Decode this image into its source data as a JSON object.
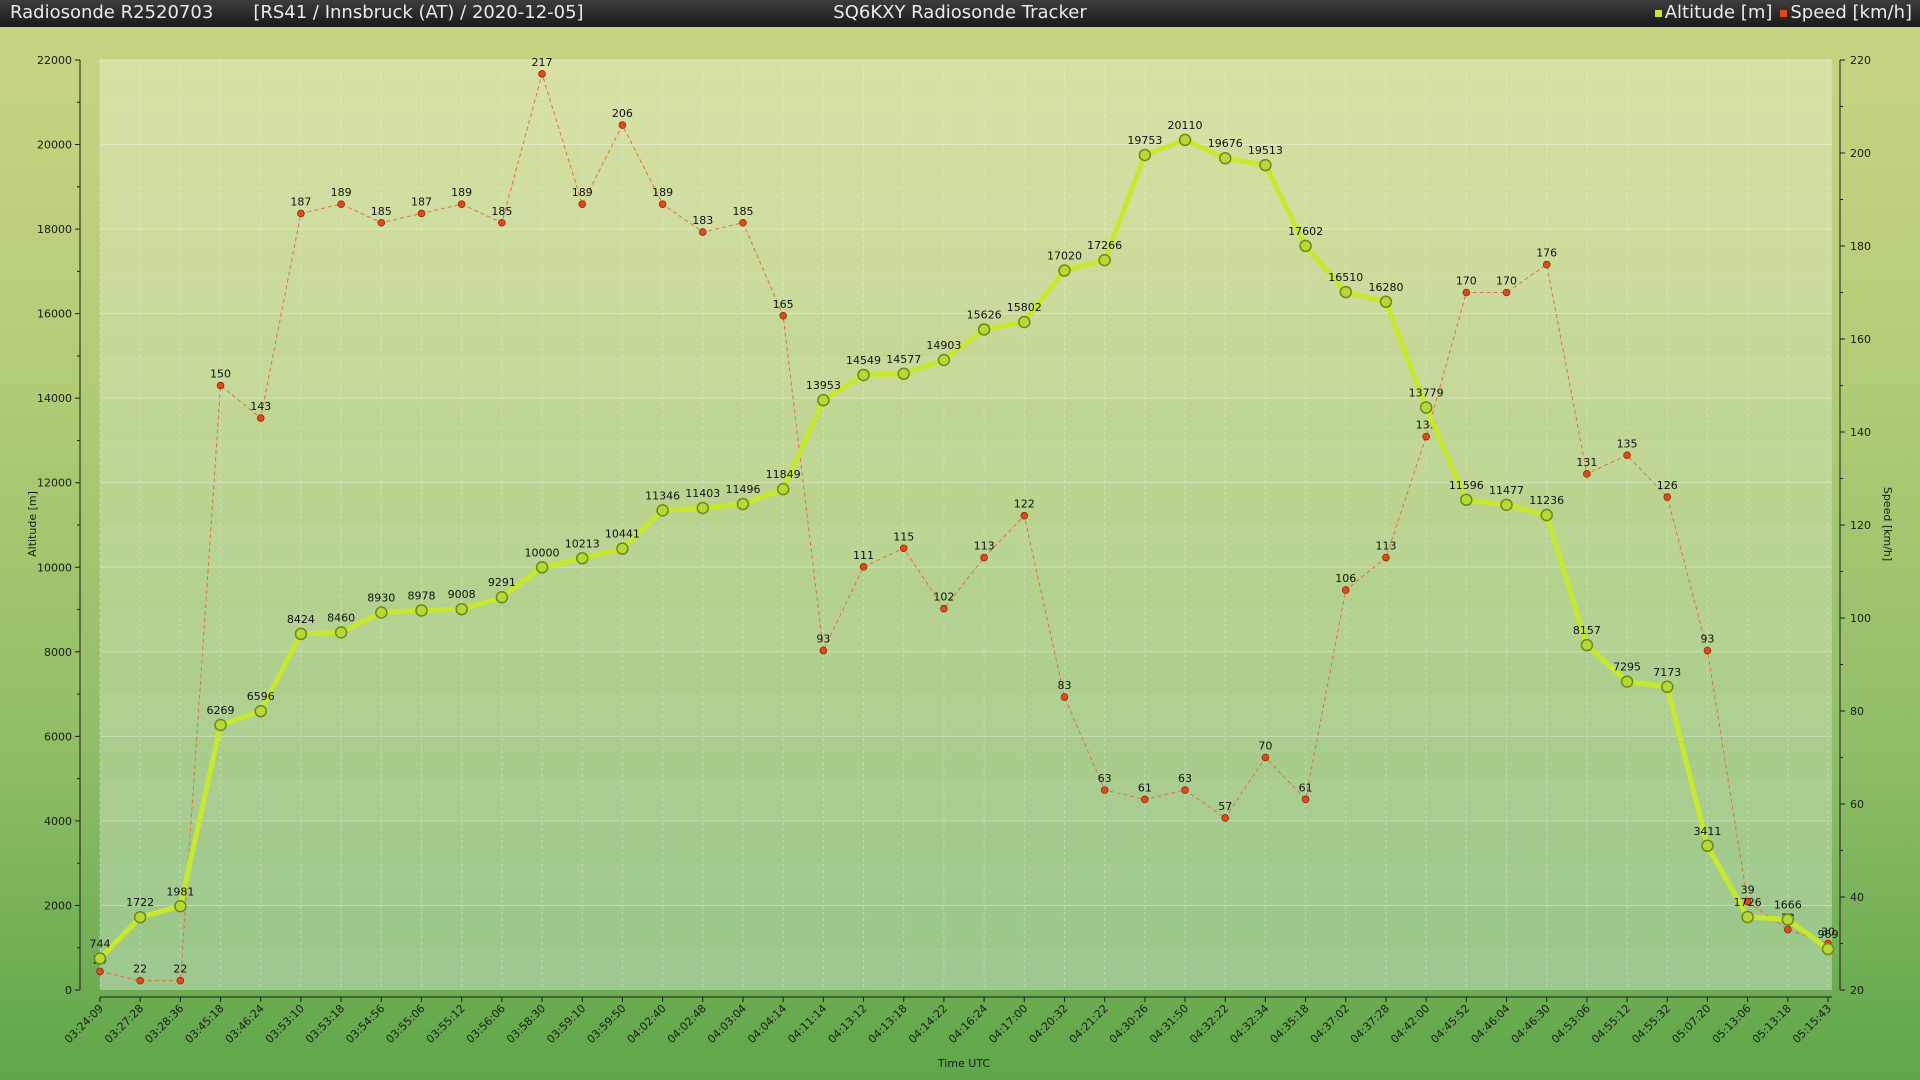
{
  "header": {
    "sonde_title": "Radiosonde R2520703",
    "flight_info": "[RS41 / Innsbruck (AT) / 2020-12-05]",
    "app_title": "SQ6KXY Radiosonde Tracker",
    "legend": [
      {
        "label": "Altitude [m]",
        "color": "#c8e830"
      },
      {
        "label": "Speed [km/h]",
        "color": "#e04a1a"
      }
    ]
  },
  "chart_data": {
    "type": "line",
    "xlabel": "Time UTC",
    "ylabel": "Altitude [m]",
    "y2label": "Speed [km/h]",
    "ylim": [
      0,
      22000
    ],
    "yticks": [
      0,
      2000,
      4000,
      6000,
      8000,
      10000,
      12000,
      14000,
      16000,
      18000,
      20000,
      22000
    ],
    "y2lim": [
      20,
      220
    ],
    "y2ticks": [
      20,
      40,
      60,
      80,
      100,
      120,
      140,
      160,
      180,
      200,
      220
    ],
    "grid": true,
    "categories": [
      "03:24:09",
      "03:27:28",
      "03:28:36",
      "03:45:18",
      "03:46:24",
      "03:53:10",
      "03:53:18",
      "03:54:56",
      "03:55:06",
      "03:55:12",
      "03:56:06",
      "03:58:30",
      "03:59:10",
      "03:59:50",
      "04:02:40",
      "04:02:48",
      "04:03:04",
      "04:04:14",
      "04:11:14",
      "04:13:12",
      "04:13:18",
      "04:14:22",
      "04:16:24",
      "04:17:00",
      "04:20:32",
      "04:21:22",
      "04:30:26",
      "04:31:50",
      "04:32:22",
      "04:32:34",
      "04:35:18",
      "04:37:02",
      "04:37:28",
      "04:42:00",
      "04:45:52",
      "04:46:04",
      "04:46:30",
      "04:53:06",
      "04:55:12",
      "04:55:32",
      "05:07:20",
      "05:13:06",
      "05:13:18",
      "05:15:43"
    ],
    "series": [
      {
        "name": "Altitude [m]",
        "axis": "left",
        "color": "#c8e830",
        "values": [
          744,
          1722,
          1981,
          6269,
          6596,
          8424,
          8460,
          8930,
          8978,
          9008,
          9291,
          10000,
          10213,
          10441,
          11346,
          11403,
          11496,
          11849,
          13953,
          14549,
          14577,
          14903,
          15626,
          15802,
          17020,
          17266,
          19753,
          20110,
          19676,
          19513,
          17602,
          16510,
          16280,
          13779,
          11596,
          11477,
          11236,
          8157,
          7295,
          7173,
          3411,
          1726,
          1666,
          969
        ]
      },
      {
        "name": "Speed [km/h]",
        "axis": "right",
        "color": "#e04a1a",
        "values": [
          24,
          22,
          22,
          150,
          143,
          187,
          189,
          185,
          187,
          189,
          185,
          217,
          189,
          206,
          189,
          183,
          185,
          165,
          93,
          111,
          115,
          102,
          113,
          122,
          83,
          63,
          61,
          63,
          57,
          70,
          61,
          106,
          113,
          139,
          170,
          170,
          176,
          131,
          135,
          126,
          93,
          39,
          33,
          30
        ]
      }
    ]
  }
}
